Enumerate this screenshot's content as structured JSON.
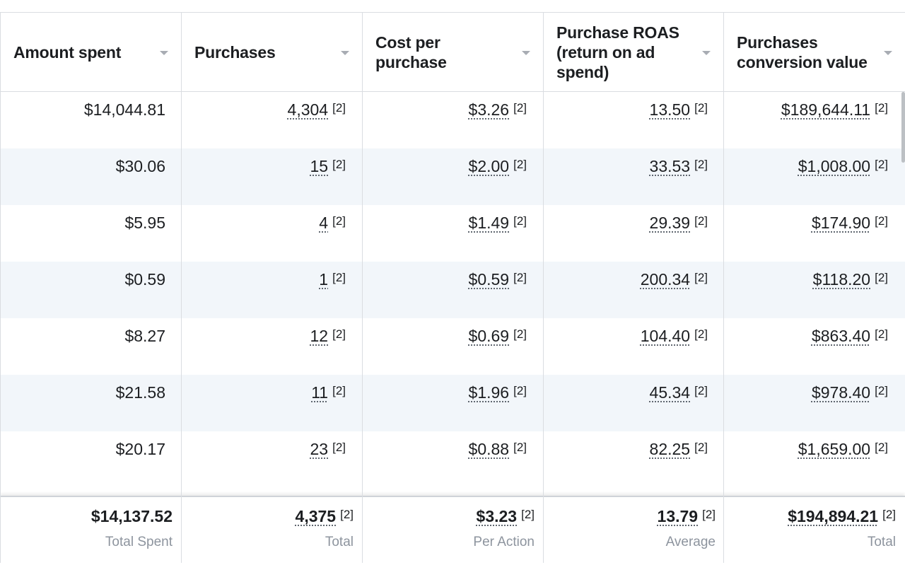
{
  "columns": [
    {
      "label": "Amount spent"
    },
    {
      "label": "Purchases"
    },
    {
      "label": "Cost per\npurchase"
    },
    {
      "label": "Purchase ROAS\n(return on ad\nspend)"
    },
    {
      "label": "Purchases\nconversion value"
    }
  ],
  "rows": [
    {
      "amount_spent": "$14,044.81",
      "purchases": "4,304",
      "cost_per_purchase": "$3.26",
      "roas": "13.50",
      "conversion_value": "$189,644.11"
    },
    {
      "amount_spent": "$30.06",
      "purchases": "15",
      "cost_per_purchase": "$2.00",
      "roas": "33.53",
      "conversion_value": "$1,008.00"
    },
    {
      "amount_spent": "$5.95",
      "purchases": "4",
      "cost_per_purchase": "$1.49",
      "roas": "29.39",
      "conversion_value": "$174.90"
    },
    {
      "amount_spent": "$0.59",
      "purchases": "1",
      "cost_per_purchase": "$0.59",
      "roas": "200.34",
      "conversion_value": "$118.20"
    },
    {
      "amount_spent": "$8.27",
      "purchases": "12",
      "cost_per_purchase": "$0.69",
      "roas": "104.40",
      "conversion_value": "$863.40"
    },
    {
      "amount_spent": "$21.58",
      "purchases": "11",
      "cost_per_purchase": "$1.96",
      "roas": "45.34",
      "conversion_value": "$978.40"
    },
    {
      "amount_spent": "$20.17",
      "purchases": "23",
      "cost_per_purchase": "$0.88",
      "roas": "82.25",
      "conversion_value": "$1,659.00"
    }
  ],
  "footnote": "[2]",
  "totals": {
    "amount_spent": {
      "value": "$14,137.52",
      "label": "Total Spent"
    },
    "purchases": {
      "value": "4,375",
      "label": "Total"
    },
    "cost_per_purchase": {
      "value": "$3.23",
      "label": "Per Action"
    },
    "roas": {
      "value": "13.79",
      "label": "Average"
    },
    "conversion_value": {
      "value": "$194,894.21",
      "label": "Total"
    }
  },
  "colors": {
    "border": "#dadde1",
    "alt_row": "#f2f6fa",
    "muted_text": "#8d949e"
  }
}
